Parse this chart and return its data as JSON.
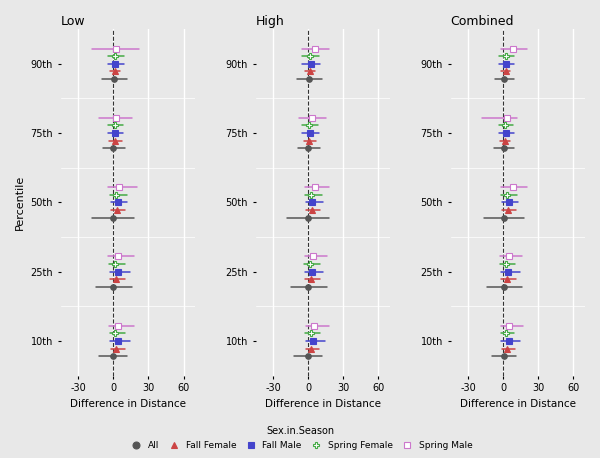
{
  "panels": [
    "Low",
    "High",
    "Combined"
  ],
  "percentiles": [
    "90th",
    "75th",
    "50th",
    "25th",
    "10th"
  ],
  "background_color": "#e8e8e8",
  "grid_color": "#ffffff",
  "xlabel": "Difference in Distance",
  "ylabel": "Percentile",
  "xlim": [
    -45,
    70
  ],
  "xticks": [
    -30,
    0,
    30,
    60
  ],
  "series_order": [
    "Spring Male",
    "Spring Female",
    "Fall Male",
    "Fall Female",
    "All"
  ],
  "series": {
    "Spring Male": {
      "color": "#cc77cc",
      "marker": "s",
      "markersize": 4,
      "mfc": "white"
    },
    "Spring Female": {
      "color": "#44aa44",
      "marker": "P",
      "markersize": 4,
      "mfc": "white"
    },
    "Fall Male": {
      "color": "#4444cc",
      "marker": "s",
      "markersize": 5,
      "mfc": "#4444cc"
    },
    "Fall Female": {
      "color": "#cc4444",
      "marker": "^",
      "markersize": 4,
      "mfc": "#cc4444"
    },
    "All": {
      "color": "#555555",
      "marker": "o",
      "markersize": 4,
      "mfc": "#555555"
    }
  },
  "offsets": [
    0.22,
    0.11,
    0.0,
    -0.11,
    -0.22
  ],
  "data": {
    "Low": {
      "90th": {
        "Spring Male": {
          "est": 2.0,
          "lo": -18.0,
          "hi": 22.0
        },
        "Spring Female": {
          "est": 1.0,
          "lo": -5.0,
          "hi": 9.0
        },
        "Fall Male": {
          "est": 1.5,
          "lo": -5.0,
          "hi": 9.0
        },
        "Fall Female": {
          "est": 1.0,
          "lo": -3.0,
          "hi": 6.0
        },
        "All": {
          "est": 0.5,
          "lo": -10.0,
          "hi": 12.0
        }
      },
      "75th": {
        "Spring Male": {
          "est": 2.0,
          "lo": -12.0,
          "hi": 16.0
        },
        "Spring Female": {
          "est": 1.0,
          "lo": -5.0,
          "hi": 8.0
        },
        "Fall Male": {
          "est": 1.5,
          "lo": -5.0,
          "hi": 8.0
        },
        "Fall Female": {
          "est": 1.0,
          "lo": -4.0,
          "hi": 7.0
        },
        "All": {
          "est": 0.0,
          "lo": -9.0,
          "hi": 10.0
        }
      },
      "50th": {
        "Spring Male": {
          "est": 5.0,
          "lo": -5.0,
          "hi": 20.0
        },
        "Spring Female": {
          "est": 2.0,
          "lo": -3.0,
          "hi": 12.0
        },
        "Fall Male": {
          "est": 3.5,
          "lo": -2.0,
          "hi": 12.0
        },
        "Fall Female": {
          "est": 3.0,
          "lo": -2.0,
          "hi": 10.0
        },
        "All": {
          "est": 0.0,
          "lo": -18.0,
          "hi": 18.0
        }
      },
      "25th": {
        "Spring Male": {
          "est": 4.0,
          "lo": -5.0,
          "hi": 18.0
        },
        "Spring Female": {
          "est": 1.5,
          "lo": -4.0,
          "hi": 10.0
        },
        "Fall Male": {
          "est": 3.5,
          "lo": -3.0,
          "hi": 14.0
        },
        "Fall Female": {
          "est": 2.5,
          "lo": -3.0,
          "hi": 10.0
        },
        "All": {
          "est": 0.0,
          "lo": -15.0,
          "hi": 16.0
        }
      },
      "10th": {
        "Spring Male": {
          "est": 4.0,
          "lo": -4.0,
          "hi": 18.0
        },
        "Spring Female": {
          "est": 1.5,
          "lo": -3.0,
          "hi": 10.0
        },
        "Fall Male": {
          "est": 4.0,
          "lo": -3.0,
          "hi": 14.0
        },
        "Fall Female": {
          "est": 2.5,
          "lo": -2.0,
          "hi": 10.0
        },
        "All": {
          "est": 0.0,
          "lo": -12.0,
          "hi": 12.0
        }
      }
    },
    "High": {
      "90th": {
        "Spring Male": {
          "est": 6.0,
          "lo": -5.0,
          "hi": 18.0
        },
        "Spring Female": {
          "est": 1.5,
          "lo": -5.0,
          "hi": 9.0
        },
        "Fall Male": {
          "est": 2.0,
          "lo": -5.0,
          "hi": 10.0
        },
        "Fall Female": {
          "est": 1.5,
          "lo": -3.0,
          "hi": 6.0
        },
        "All": {
          "est": 0.5,
          "lo": -10.0,
          "hi": 12.0
        }
      },
      "75th": {
        "Spring Male": {
          "est": 3.0,
          "lo": -8.0,
          "hi": 15.0
        },
        "Spring Female": {
          "est": 1.0,
          "lo": -5.0,
          "hi": 8.0
        },
        "Fall Male": {
          "est": 1.5,
          "lo": -5.0,
          "hi": 9.0
        },
        "Fall Female": {
          "est": 1.0,
          "lo": -4.0,
          "hi": 7.0
        },
        "All": {
          "est": 0.0,
          "lo": -9.0,
          "hi": 10.0
        }
      },
      "50th": {
        "Spring Male": {
          "est": 6.0,
          "lo": -3.0,
          "hi": 18.0
        },
        "Spring Female": {
          "est": 2.0,
          "lo": -3.0,
          "hi": 12.0
        },
        "Fall Male": {
          "est": 3.5,
          "lo": -2.0,
          "hi": 13.0
        },
        "Fall Female": {
          "est": 3.0,
          "lo": -2.0,
          "hi": 10.0
        },
        "All": {
          "est": 0.0,
          "lo": -18.0,
          "hi": 18.0
        }
      },
      "25th": {
        "Spring Male": {
          "est": 4.0,
          "lo": -3.0,
          "hi": 16.0
        },
        "Spring Female": {
          "est": 1.5,
          "lo": -4.0,
          "hi": 10.0
        },
        "Fall Male": {
          "est": 3.5,
          "lo": -3.0,
          "hi": 13.0
        },
        "Fall Female": {
          "est": 2.5,
          "lo": -3.0,
          "hi": 10.0
        },
        "All": {
          "est": 0.0,
          "lo": -15.0,
          "hi": 16.0
        }
      },
      "10th": {
        "Spring Male": {
          "est": 5.0,
          "lo": -2.0,
          "hi": 18.0
        },
        "Spring Female": {
          "est": 2.0,
          "lo": -3.0,
          "hi": 10.0
        },
        "Fall Male": {
          "est": 4.0,
          "lo": -2.0,
          "hi": 14.0
        },
        "Fall Female": {
          "est": 2.5,
          "lo": -2.0,
          "hi": 9.0
        },
        "All": {
          "est": 0.0,
          "lo": -12.0,
          "hi": 12.0
        }
      }
    },
    "Combined": {
      "90th": {
        "Spring Male": {
          "est": 8.0,
          "lo": -2.0,
          "hi": 20.0
        },
        "Spring Female": {
          "est": 2.0,
          "lo": -4.0,
          "hi": 9.0
        },
        "Fall Male": {
          "est": 2.0,
          "lo": -4.0,
          "hi": 9.0
        },
        "Fall Female": {
          "est": 2.0,
          "lo": -2.0,
          "hi": 6.0
        },
        "All": {
          "est": 1.0,
          "lo": -7.0,
          "hi": 9.0
        }
      },
      "75th": {
        "Spring Male": {
          "est": 3.0,
          "lo": -18.0,
          "hi": 12.0
        },
        "Spring Female": {
          "est": 1.5,
          "lo": -4.0,
          "hi": 8.0
        },
        "Fall Male": {
          "est": 2.0,
          "lo": -4.0,
          "hi": 9.0
        },
        "Fall Female": {
          "est": 1.5,
          "lo": -3.0,
          "hi": 6.0
        },
        "All": {
          "est": 0.5,
          "lo": -8.0,
          "hi": 9.0
        }
      },
      "50th": {
        "Spring Male": {
          "est": 8.0,
          "lo": -2.0,
          "hi": 20.0
        },
        "Spring Female": {
          "est": 3.0,
          "lo": -2.0,
          "hi": 12.0
        },
        "Fall Male": {
          "est": 5.0,
          "lo": -1.0,
          "hi": 13.0
        },
        "Fall Female": {
          "est": 4.0,
          "lo": -1.0,
          "hi": 11.0
        },
        "All": {
          "est": 1.0,
          "lo": -16.0,
          "hi": 18.0
        }
      },
      "25th": {
        "Spring Male": {
          "est": 5.0,
          "lo": -3.0,
          "hi": 16.0
        },
        "Spring Female": {
          "est": 2.0,
          "lo": -3.0,
          "hi": 10.0
        },
        "Fall Male": {
          "est": 4.5,
          "lo": -2.0,
          "hi": 14.0
        },
        "Fall Female": {
          "est": 3.5,
          "lo": -2.0,
          "hi": 11.0
        },
        "All": {
          "est": 0.5,
          "lo": -14.0,
          "hi": 16.0
        }
      },
      "10th": {
        "Spring Male": {
          "est": 5.0,
          "lo": -2.0,
          "hi": 17.0
        },
        "Spring Female": {
          "est": 2.0,
          "lo": -2.0,
          "hi": 9.0
        },
        "Fall Male": {
          "est": 5.0,
          "lo": -2.0,
          "hi": 14.0
        },
        "Fall Female": {
          "est": 3.5,
          "lo": -1.0,
          "hi": 10.0
        },
        "All": {
          "est": 0.5,
          "lo": -10.0,
          "hi": 11.0
        }
      }
    }
  },
  "legend_order": [
    "All",
    "Fall Female",
    "Fall Male",
    "Spring Female",
    "Spring Male"
  ]
}
